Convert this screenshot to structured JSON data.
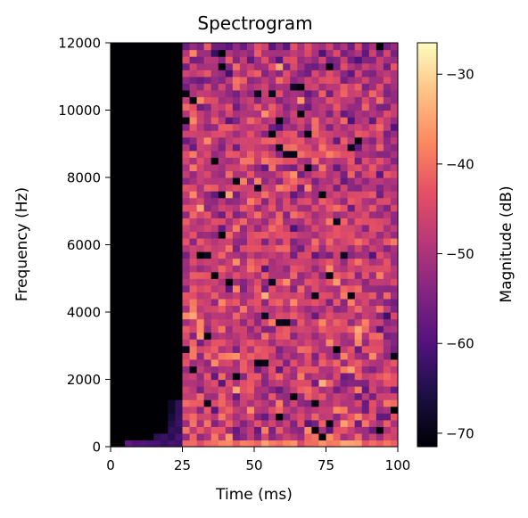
{
  "chart_data": {
    "type": "heatmap",
    "title": "Spectrogram",
    "xlabel": "Time (ms)",
    "ylabel": "Frequency (Hz)",
    "colorbar_label": "Magnitude (dB)",
    "colormap": "magma",
    "xlim": [
      0,
      100
    ],
    "ylim": [
      0,
      12000
    ],
    "xticks": [
      "0",
      "25",
      "50",
      "75",
      "100"
    ],
    "yticks": [
      "0",
      "2000",
      "4000",
      "6000",
      "8000",
      "10000",
      "12000"
    ],
    "clim": [
      -71.5,
      -26.5
    ],
    "cticks": [
      "−70",
      "−60",
      "−50",
      "−40",
      "−30"
    ],
    "onset_ms": 25,
    "time_bins": 40,
    "freq_bins": 60,
    "noise_floor_db": -71.5,
    "signal_mean_db": -47,
    "signal_spread_db": 7
  }
}
